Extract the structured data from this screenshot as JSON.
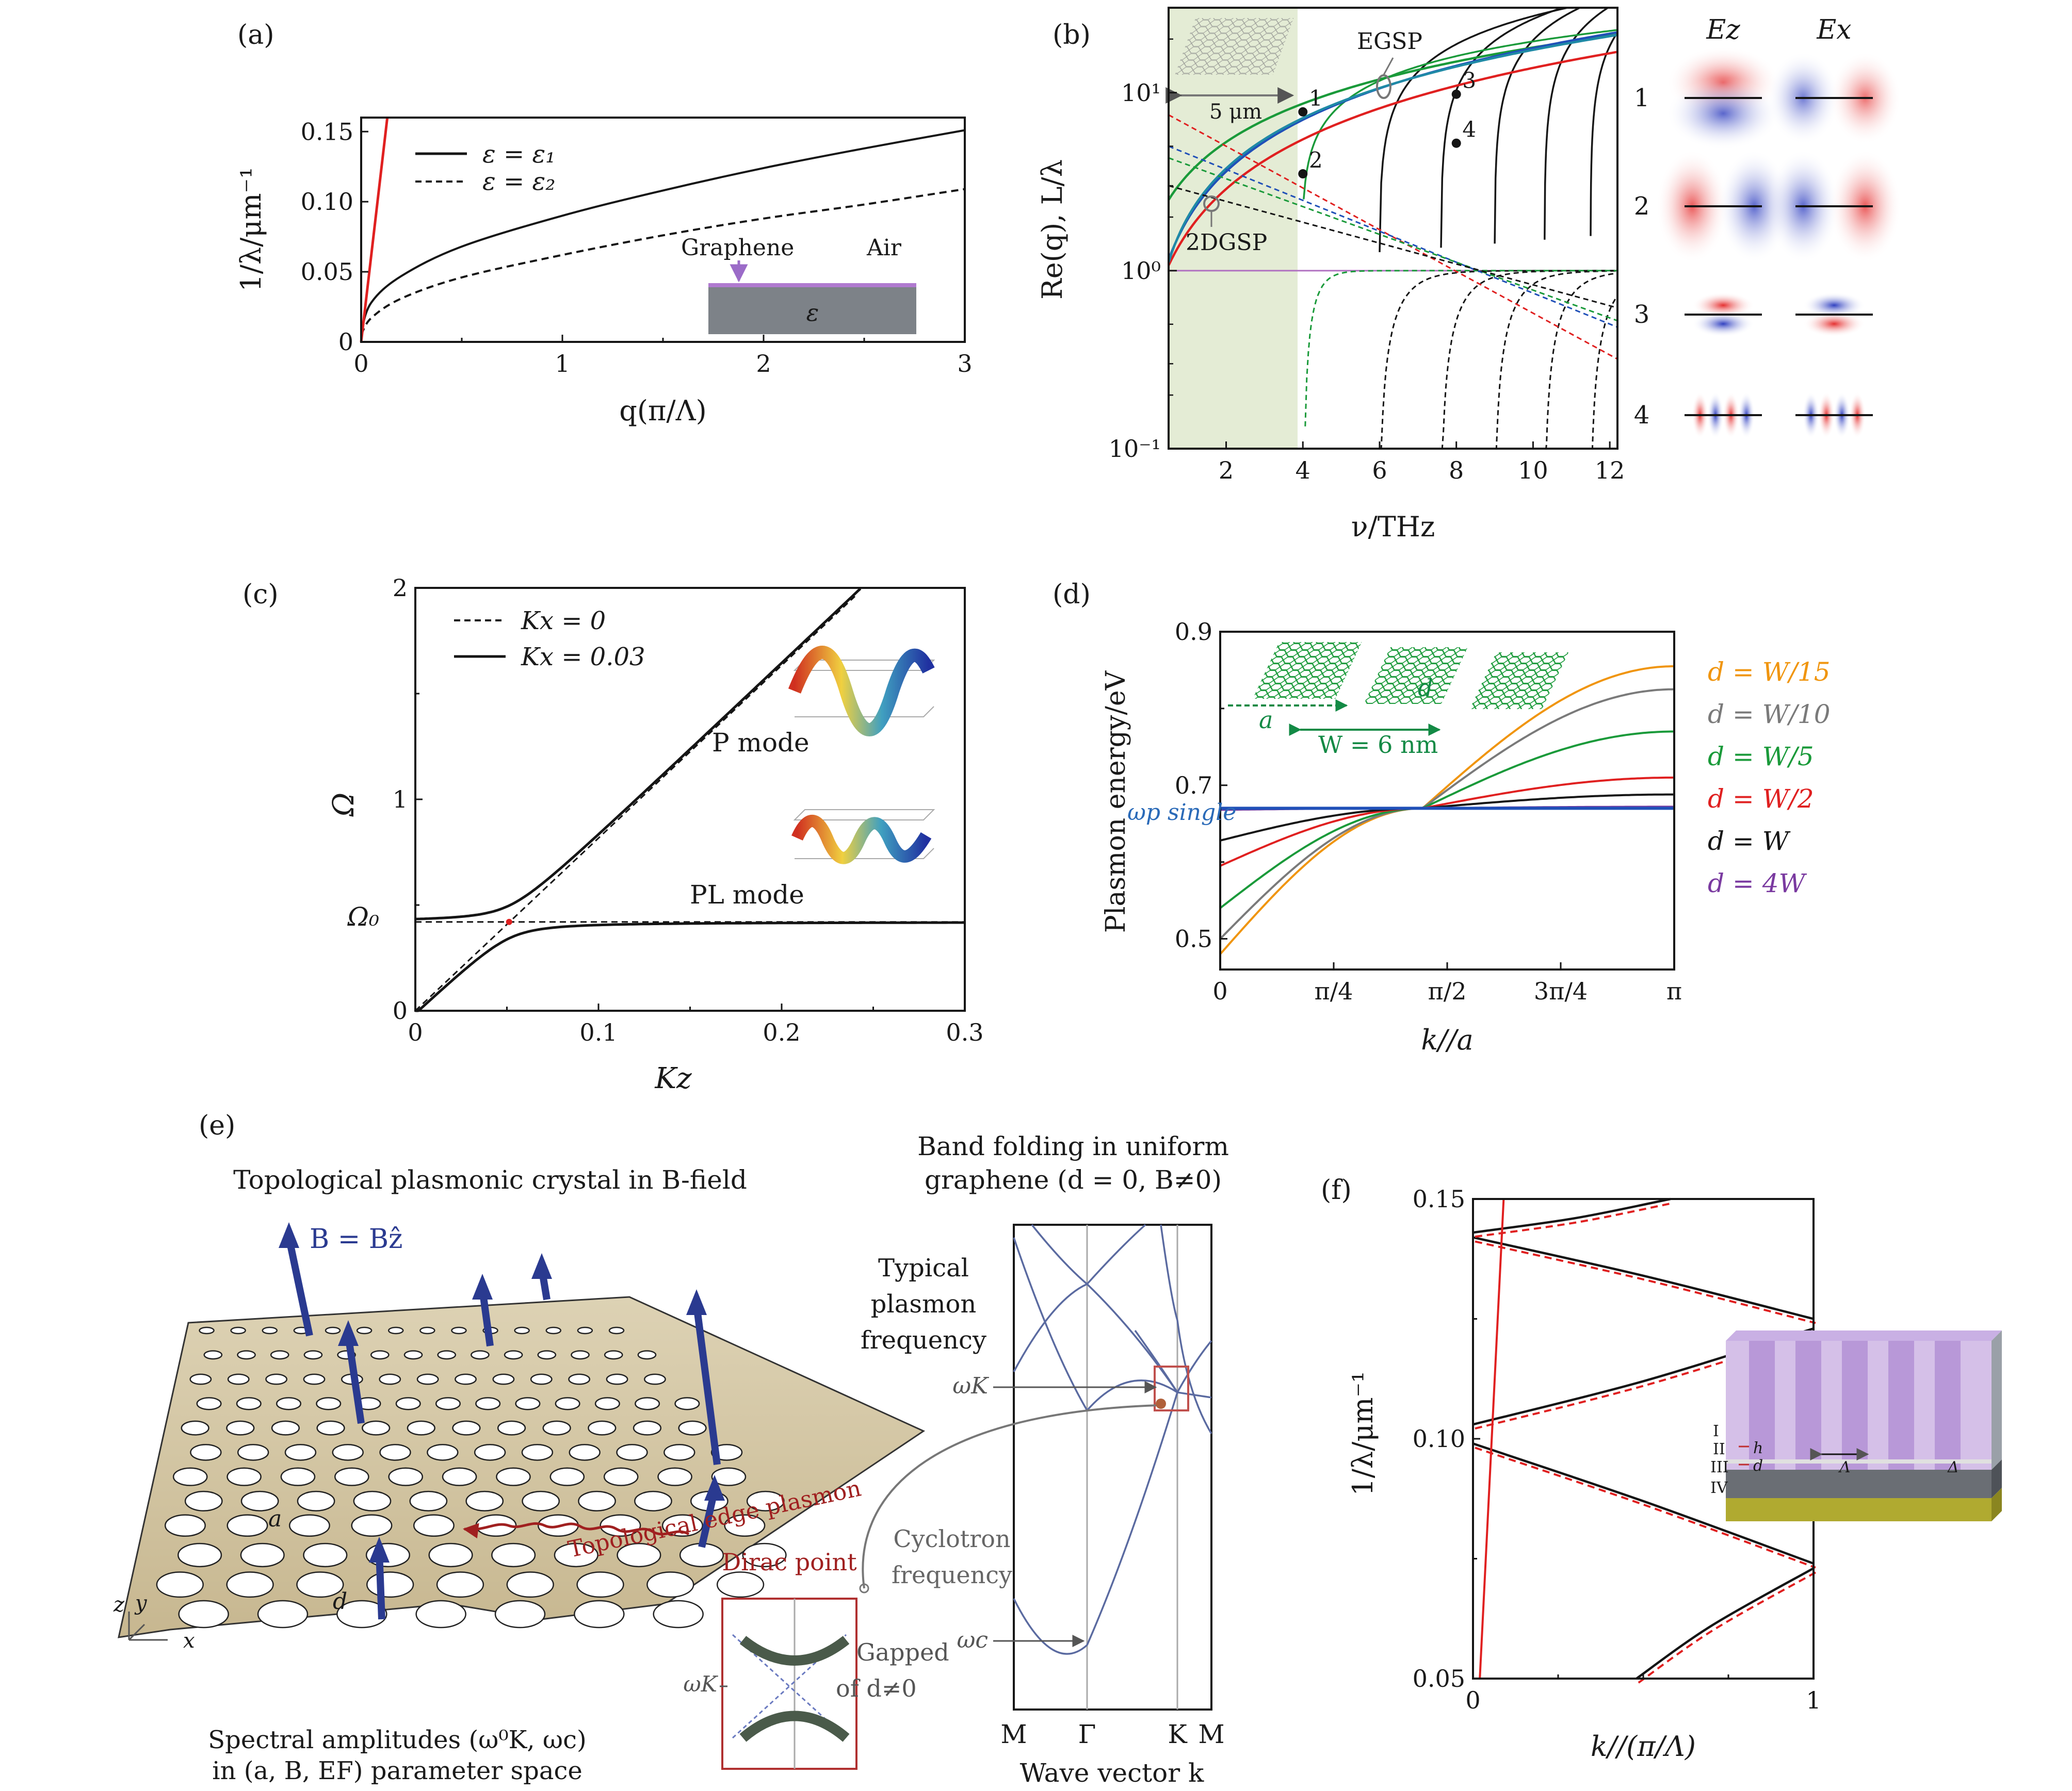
{
  "colors": {
    "black": "#151515",
    "red": "#e02020",
    "blue": "#2050b8",
    "green": "#1a9a3a",
    "darkgreen": "#138a45",
    "orange": "#f0950e",
    "gray": "#7a7a7a",
    "purple": "#7a3aa0",
    "shade": "#e4ecd5",
    "slate": "#5a6aa0",
    "darkred": "#a02020"
  },
  "panels": {
    "a": {
      "label": "(a)",
      "ylabel": "1/λ/μm⁻¹",
      "xlabel": "q(π/Λ)",
      "legend": [
        "ε = ε₁",
        "ε = ε₂"
      ],
      "inset": {
        "left": "Graphene",
        "right": "Air",
        "material": "ε"
      }
    },
    "b": {
      "label": "(b)",
      "ylabel": "Re(q), L/λ",
      "xlabel": "ν/THz",
      "ann": {
        "egsp": "EGSP",
        "dgsp": "2DGSP",
        "scale": "5 μm"
      },
      "point_labels": [
        "1",
        "2",
        "3",
        "4"
      ],
      "mode_header": {
        "ez": "Ez",
        "ex": "Ex"
      },
      "mode_rows": [
        "1",
        "2",
        "3",
        "4"
      ]
    },
    "c": {
      "label": "(c)",
      "ylabel": "Ω",
      "xlabel": "Kz",
      "legend": [
        "Kx = 0",
        "Kx = 0.03"
      ],
      "modes": {
        "p": "P mode",
        "pl": "PL mode"
      },
      "omega0": "Ω₀"
    },
    "d": {
      "label": "(d)",
      "ylabel": "Plasmon energy/eV",
      "xlabel": "k∕∕a",
      "inset": {
        "a": "a",
        "d": "d",
        "w": "W = 6 nm"
      },
      "single": "ωp single"
    },
    "e": {
      "label": "(e)",
      "title": "Topological plasmonic crystal in B-field",
      "bfield": "B = Bẑ",
      "edge": "Topological edge plasmon",
      "footer": [
        "Spectral amplitudes (ω⁰K, ωc)",
        "in (a, B, EF) parameter space"
      ],
      "band_title": [
        "Band folding in uniform",
        "graphene (d = 0, B≠0)"
      ],
      "typical": [
        "Typical",
        "plasmon",
        "frequency"
      ],
      "cyclotron": [
        "Cyclotron",
        "frequency"
      ],
      "omega_k": "ωK",
      "omega_c": "ωc",
      "dirac": "Dirac point",
      "gapped": [
        "Gapped",
        "of d≠0"
      ],
      "kpoints": [
        "M",
        "Γ",
        "K",
        "M"
      ],
      "wavevector": "Wave vector k",
      "labels_a": "a",
      "labels_d": "d",
      "axes": {
        "x": "x",
        "y": "y",
        "z": "z"
      }
    },
    "f": {
      "label": "(f)",
      "ylabel": "1/λ/μm⁻¹",
      "xlabel": "k∕∕(π/Λ)",
      "inset": {
        "roman": [
          "I",
          "II",
          "III",
          "IV"
        ],
        "h": "h",
        "d": "d",
        "lam": "Λ",
        "delta": "Δ"
      }
    }
  },
  "chart_data": [
    {
      "panel": "a",
      "type": "line",
      "xlim": [
        0,
        3
      ],
      "ylim": [
        0,
        0.16
      ],
      "xticks": [
        "0",
        "1",
        "2",
        "3"
      ],
      "yticks": [
        "0",
        "0.05",
        "0.10",
        "0.15"
      ],
      "series": [
        {
          "name": "ε = ε₁",
          "style": "solid",
          "x": [
            0,
            0.05,
            0.2,
            0.5,
            1.0,
            1.5,
            2.0,
            2.5,
            3.0
          ],
          "y": [
            0.007,
            0.028,
            0.047,
            0.068,
            0.09,
            0.108,
            0.124,
            0.138,
            0.151
          ]
        },
        {
          "name": "ε = ε₂",
          "style": "dashed",
          "x": [
            0,
            0.05,
            0.2,
            0.5,
            1.0,
            1.5,
            2.0,
            2.5,
            3.0
          ],
          "y": [
            0.005,
            0.017,
            0.031,
            0.046,
            0.062,
            0.076,
            0.088,
            0.098,
            0.109
          ]
        },
        {
          "name": "light line",
          "style": "red",
          "x": [
            0,
            0.13
          ],
          "y": [
            0,
            0.16
          ]
        }
      ]
    },
    {
      "panel": "b",
      "type": "line",
      "yscale": "log",
      "xlim": [
        0.5,
        12.2
      ],
      "ylim": [
        0.1,
        30
      ],
      "xticks": [
        "2",
        "4",
        "6",
        "8",
        "10",
        "12"
      ],
      "yticks": [
        "10⁻¹",
        "10⁰",
        "10¹"
      ],
      "shaded_region": [
        0.5,
        3.9
      ],
      "points": [
        {
          "label": "1",
          "x": 4.0,
          "y": 7.8
        },
        {
          "label": "2",
          "x": 4.0,
          "y": 3.5
        },
        {
          "label": "3",
          "x": 8.0,
          "y": 9.8
        },
        {
          "label": "4",
          "x": 8.0,
          "y": 5.2
        }
      ],
      "series": [
        {
          "name": "EGSP (teal)",
          "x": [
            0.5,
            2,
            4,
            6,
            8,
            10,
            12
          ],
          "y": [
            1.3,
            3.2,
            6.9,
            10.6,
            13.6,
            16.6,
            20.3
          ]
        },
        {
          "name": "red",
          "x": [
            0.5,
            2,
            4,
            6,
            8,
            10,
            12
          ],
          "y": [
            1.1,
            2.5,
            5.0,
            7.8,
            10.6,
            13.3,
            16.0
          ]
        },
        {
          "name": "green",
          "x": [
            0.5,
            2,
            4,
            6,
            8,
            10,
            12
          ],
          "y": [
            3.4,
            5.7,
            8.5,
            11.3,
            13.3,
            14.9,
            16.1
          ]
        }
      ]
    },
    {
      "panel": "c",
      "type": "line",
      "xlim": [
        0,
        0.3
      ],
      "ylim": [
        0,
        2
      ],
      "xticks": [
        "0",
        "0.1",
        "0.2",
        "0.3"
      ],
      "yticks": [
        "0",
        "1",
        "2"
      ],
      "omega0": 0.42,
      "series": [
        {
          "name": "Kx = 0.03 upper",
          "x": [
            0,
            0.05,
            0.08,
            0.1,
            0.15,
            0.2,
            0.24
          ],
          "y": [
            0.49,
            0.55,
            0.68,
            0.8,
            1.19,
            1.6,
            1.93
          ]
        },
        {
          "name": "Kx = 0.03 lower",
          "x": [
            0,
            0.03,
            0.05,
            0.08,
            0.12,
            0.2,
            0.3
          ],
          "y": [
            0,
            0.21,
            0.31,
            0.38,
            0.41,
            0.42,
            0.42
          ]
        },
        {
          "name": "Kx = 0 light line",
          "x": [
            0,
            0.24
          ],
          "y": [
            0,
            1.96
          ]
        }
      ]
    },
    {
      "panel": "d",
      "type": "line",
      "xlim": [
        0,
        3.1416
      ],
      "ylim": [
        0.46,
        0.9
      ],
      "xticks": [
        "0",
        "π/4",
        "π/2",
        "3π/4",
        "π"
      ],
      "yticks": [
        "0.5",
        "0.7",
        "0.9"
      ],
      "crossing": {
        "x": 1.4,
        "y": 0.67
      },
      "series": [
        {
          "name": "d = W/15",
          "color": "orange",
          "y0": 0.48,
          "yend": 0.855
        },
        {
          "name": "d = W/10",
          "color": "gray",
          "y0": 0.5,
          "yend": 0.825
        },
        {
          "name": "d = W/5",
          "color": "green",
          "y0": 0.54,
          "yend": 0.77
        },
        {
          "name": "d = W/2",
          "color": "red",
          "y0": 0.595,
          "yend": 0.71
        },
        {
          "name": "d = W",
          "color": "black",
          "y0": 0.628,
          "yend": 0.688
        },
        {
          "name": "d = 4W",
          "color": "purple",
          "y0": 0.668,
          "yend": 0.672
        },
        {
          "name": "ωp single",
          "color": "blue",
          "y0": 0.67,
          "yend": 0.67
        }
      ]
    },
    {
      "panel": "e-band",
      "type": "line",
      "kpoints": [
        "M",
        "Γ",
        "K",
        "M"
      ]
    },
    {
      "panel": "f",
      "type": "line",
      "xlim": [
        0,
        1
      ],
      "ylim": [
        0.05,
        0.15
      ],
      "xticks": [
        "0",
        "1"
      ],
      "yticks": [
        "0.05",
        "0.10",
        "0.15"
      ],
      "series": [
        {
          "name": "band1",
          "x": [
            0.48,
            0.7,
            1
          ],
          "y": [
            0.05,
            0.061,
            0.073
          ]
        },
        {
          "name": "band2",
          "x": [
            0,
            0.5,
            1
          ],
          "y": [
            0.099,
            0.087,
            0.074
          ]
        },
        {
          "name": "band3",
          "x": [
            0,
            0.5,
            1
          ],
          "y": [
            0.103,
            0.112,
            0.123
          ]
        },
        {
          "name": "band4",
          "x": [
            0,
            0.5,
            1
          ],
          "y": [
            0.142,
            0.134,
            0.125
          ]
        },
        {
          "name": "band5",
          "x": [
            0,
            0.3,
            0.58
          ],
          "y": [
            0.143,
            0.146,
            0.15
          ]
        },
        {
          "name": "light line",
          "x": [
            0.02,
            0.09
          ],
          "y": [
            0.05,
            0.15
          ]
        }
      ]
    }
  ]
}
